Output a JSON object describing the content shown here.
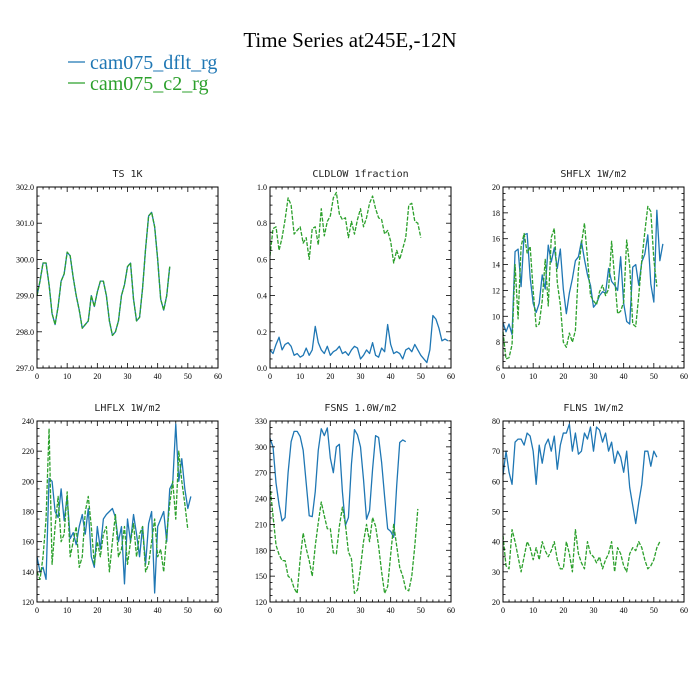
{
  "figure": {
    "title": "Time Series at245E,-12N",
    "legend": [
      {
        "label": "cam075_dflt_rg",
        "color": "#1f77b4"
      },
      {
        "label": "cam075_c2_rg",
        "color": "#2ca02c"
      }
    ]
  },
  "chart_data": [
    {
      "type": "line",
      "title": "TS   1K",
      "xlim": [
        0,
        60
      ],
      "ylim": [
        297.0,
        302.0
      ],
      "xticks": [
        0,
        10,
        20,
        30,
        40,
        50,
        60
      ],
      "yticks": [
        297.0,
        298.0,
        299.0,
        300.0,
        301.0,
        302.0
      ],
      "ytick_labels": [
        "297.0",
        "298.0",
        "299.0",
        "300.0",
        "301.0",
        "302.0"
      ],
      "series": [
        {
          "name": "cam075_dflt_rg",
          "color": "#1f77b4",
          "dashed": false,
          "values": [
            299.0,
            299.4,
            299.9,
            299.9,
            299.3,
            298.5,
            298.2,
            298.7,
            299.4,
            299.6,
            300.2,
            300.1,
            299.5,
            299.0,
            298.6,
            298.1,
            298.2,
            298.3,
            299.0,
            298.7,
            299.1,
            299.4,
            299.4,
            299.0,
            298.3,
            297.9,
            298.0,
            298.3,
            299.0,
            299.3,
            299.8,
            299.9,
            298.9,
            298.3,
            298.4,
            299.2,
            300.3,
            301.2,
            301.3,
            300.9,
            300.0,
            298.9,
            298.6,
            299.0,
            299.8
          ]
        },
        {
          "name": "cam075_c2_rg",
          "color": "#2ca02c",
          "dashed": true,
          "values": [
            299.0,
            299.4,
            299.9,
            299.9,
            299.3,
            298.5,
            298.2,
            298.7,
            299.4,
            299.6,
            300.2,
            300.1,
            299.5,
            299.0,
            298.6,
            298.1,
            298.2,
            298.3,
            299.0,
            298.7,
            299.1,
            299.4,
            299.4,
            299.0,
            298.3,
            297.9,
            298.0,
            298.3,
            299.0,
            299.3,
            299.8,
            299.9,
            298.9,
            298.3,
            298.4,
            299.2,
            300.3,
            301.2,
            301.3,
            300.9,
            300.0,
            298.9,
            298.6,
            299.0,
            299.8
          ]
        }
      ]
    },
    {
      "type": "line",
      "title": "CLDLOW   1fraction",
      "xlim": [
        0,
        60
      ],
      "ylim": [
        0.0,
        1.0
      ],
      "xticks": [
        0,
        10,
        20,
        30,
        40,
        50,
        60
      ],
      "yticks": [
        0.0,
        0.2,
        0.4,
        0.6,
        0.8,
        1.0
      ],
      "ytick_labels": [
        "0.0",
        "0.2",
        "0.4",
        "0.6",
        "0.8",
        "1.0"
      ],
      "series": [
        {
          "name": "cam075_dflt_rg",
          "color": "#1f77b4",
          "dashed": false,
          "values": [
            0.1,
            0.08,
            0.13,
            0.17,
            0.1,
            0.13,
            0.14,
            0.12,
            0.07,
            0.08,
            0.06,
            0.07,
            0.11,
            0.07,
            0.1,
            0.23,
            0.14,
            0.1,
            0.08,
            0.12,
            0.07,
            0.09,
            0.1,
            0.12,
            0.08,
            0.09,
            0.07,
            0.1,
            0.12,
            0.11,
            0.05,
            0.07,
            0.1,
            0.08,
            0.14,
            0.07,
            0.06,
            0.11,
            0.09,
            0.24,
            0.13,
            0.08,
            0.09,
            0.08,
            0.05,
            0.1,
            0.11,
            0.09,
            0.13,
            0.1,
            0.07,
            0.05,
            0.03,
            0.1,
            0.29,
            0.27,
            0.22,
            0.15,
            0.16,
            0.15
          ]
        },
        {
          "name": "cam075_c2_rg",
          "color": "#2ca02c",
          "dashed": true,
          "values": [
            0.62,
            0.77,
            0.78,
            0.65,
            0.72,
            0.82,
            0.94,
            0.9,
            0.74,
            0.76,
            0.78,
            0.69,
            0.72,
            0.6,
            0.77,
            0.78,
            0.68,
            0.88,
            0.73,
            0.81,
            0.84,
            0.94,
            0.97,
            0.85,
            0.82,
            0.83,
            0.72,
            0.81,
            0.74,
            0.82,
            0.88,
            0.78,
            0.83,
            0.91,
            0.95,
            0.88,
            0.83,
            0.82,
            0.74,
            0.76,
            0.7,
            0.58,
            0.65,
            0.6,
            0.66,
            0.72,
            0.9,
            0.91,
            0.81,
            0.8,
            0.72
          ]
        }
      ]
    },
    {
      "type": "line",
      "title": "SHFLX   1W/m2",
      "xlim": [
        0,
        60
      ],
      "ylim": [
        6,
        20
      ],
      "xticks": [
        0,
        10,
        20,
        30,
        40,
        50,
        60
      ],
      "yticks": [
        6,
        8,
        10,
        12,
        14,
        16,
        18,
        20
      ],
      "ytick_labels": [
        "6",
        "8",
        "10",
        "12",
        "14",
        "16",
        "18",
        "20"
      ],
      "series": [
        {
          "name": "cam075_dflt_rg",
          "color": "#1f77b4",
          "dashed": false,
          "values": [
            9.5,
            8.8,
            9.4,
            8.6,
            15.0,
            15.2,
            12.3,
            16.3,
            16.4,
            13.0,
            11.0,
            10.3,
            11.0,
            13.2,
            12.1,
            15.5,
            14.2,
            15.3,
            13.7,
            15.2,
            12.1,
            10.2,
            11.8,
            12.9,
            14.3,
            14.6,
            15.8,
            14.4,
            13.2,
            12.4,
            10.7,
            11.0,
            11.6,
            11.9,
            11.8,
            13.7,
            12.7,
            12.4,
            12.0,
            14.6,
            11.0,
            9.6,
            9.4,
            13.8,
            14.0,
            12.4,
            14.2,
            14.8,
            16.3,
            12.5,
            11.1,
            18.2,
            14.3,
            15.6
          ]
        },
        {
          "name": "cam075_c2_rg",
          "color": "#2ca02c",
          "dashed": true,
          "values": [
            8.8,
            6.7,
            6.8,
            7.8,
            14.0,
            9.8,
            15.4,
            16.4,
            14.9,
            15.4,
            12.0,
            9.2,
            9.4,
            11.2,
            14.4,
            10.8,
            16.1,
            16.8,
            12.6,
            10.9,
            8.0,
            7.6,
            8.7,
            8.0,
            8.9,
            13.6,
            15.6,
            17.2,
            14.5,
            11.6,
            11.2,
            10.9,
            11.9,
            12.4,
            11.6,
            12.1,
            15.8,
            13.0,
            10.2,
            10.4,
            11.1,
            15.9,
            13.9,
            9.4,
            9.2,
            11.6,
            14.3,
            16.5,
            18.5,
            18.1,
            14.4,
            12.3
          ]
        }
      ]
    },
    {
      "type": "line",
      "title": "LHFLX   1W/m2",
      "xlim": [
        0,
        60
      ],
      "ylim": [
        120,
        240
      ],
      "xticks": [
        0,
        10,
        20,
        30,
        40,
        50,
        60
      ],
      "yticks": [
        120,
        140,
        160,
        180,
        200,
        220,
        240
      ],
      "ytick_labels": [
        "120",
        "140",
        "160",
        "180",
        "200",
        "220",
        "240"
      ],
      "series": [
        {
          "name": "cam075_dflt_rg",
          "color": "#1f77b4",
          "dashed": false,
          "values": [
            150,
            140,
            143,
            135,
            202,
            200,
            180,
            176,
            195,
            174,
            190,
            162,
            166,
            158,
            170,
            178,
            165,
            182,
            150,
            143,
            170,
            155,
            175,
            178,
            180,
            182,
            176,
            160,
            170,
            132,
            175,
            160,
            178,
            165,
            150,
            170,
            145,
            172,
            180,
            126,
            170,
            175,
            180,
            160,
            195,
            199,
            238,
            200,
            215,
            195,
            182,
            190
          ]
        },
        {
          "name": "cam075_c2_rg",
          "color": "#2ca02c",
          "dashed": true,
          "values": [
            140,
            135,
            150,
            175,
            235,
            145,
            170,
            190,
            160,
            165,
            193,
            150,
            160,
            170,
            143,
            150,
            180,
            190,
            170,
            145,
            160,
            150,
            165,
            170,
            140,
            160,
            178,
            150,
            155,
            170,
            145,
            160,
            172,
            150,
            165,
            170,
            140,
            145,
            160,
            175,
            150,
            155,
            140,
            165,
            185,
            200,
            175,
            220,
            200,
            185,
            168
          ]
        }
      ]
    },
    {
      "type": "line",
      "title": "FSNS   1.0W/m2",
      "xlim": [
        0,
        60
      ],
      "ylim": [
        120,
        330
      ],
      "xticks": [
        0,
        10,
        20,
        30,
        40,
        50,
        60
      ],
      "yticks": [
        120,
        150,
        180,
        210,
        240,
        270,
        300,
        330
      ],
      "ytick_labels": [
        "120",
        "150",
        "180",
        "210",
        "240",
        "270",
        "300",
        "330"
      ],
      "series": [
        {
          "name": "cam075_dflt_rg",
          "color": "#1f77b4",
          "dashed": false,
          "values": [
            310,
            300,
            258,
            233,
            214,
            218,
            270,
            306,
            318,
            318,
            312,
            296,
            258,
            220,
            219,
            248,
            296,
            321,
            313,
            322,
            287,
            270,
            300,
            303,
            248,
            209,
            218,
            280,
            320,
            314,
            300,
            262,
            216,
            226,
            274,
            313,
            311,
            282,
            242,
            205,
            202,
            195,
            255,
            305,
            308,
            306
          ]
        },
        {
          "name": "cam075_c2_rg",
          "color": "#2ca02c",
          "dashed": true,
          "values": [
            255,
            220,
            186,
            175,
            168,
            168,
            150,
            147,
            136,
            130,
            170,
            200,
            182,
            168,
            150,
            185,
            212,
            236,
            220,
            205,
            205,
            177,
            176,
            208,
            230,
            210,
            178,
            170,
            130,
            134,
            160,
            190,
            210,
            190,
            218,
            208,
            185,
            155,
            130,
            138,
            175,
            210,
            185,
            160,
            150,
            135,
            133,
            150,
            185,
            228
          ]
        }
      ]
    },
    {
      "type": "line",
      "title": "FLNS   1W/m2",
      "xlim": [
        0,
        60
      ],
      "ylim": [
        20,
        80
      ],
      "xticks": [
        0,
        10,
        20,
        30,
        40,
        50,
        60
      ],
      "yticks": [
        20,
        30,
        40,
        50,
        60,
        70,
        80
      ],
      "ytick_labels": [
        "20",
        "30",
        "40",
        "50",
        "60",
        "70",
        "80"
      ],
      "series": [
        {
          "name": "cam075_dflt_rg",
          "color": "#1f77b4",
          "dashed": false,
          "values": [
            62,
            70,
            63,
            59,
            73,
            74,
            74,
            72,
            76,
            75,
            70,
            59,
            72,
            66,
            72,
            74,
            70,
            75,
            64,
            72,
            76,
            76,
            79,
            70,
            76,
            69,
            70,
            76,
            74,
            78,
            70,
            78,
            77,
            73,
            76,
            70,
            73,
            66,
            70,
            68,
            63,
            70,
            58,
            52,
            46,
            53,
            59,
            70,
            70,
            65,
            70,
            68
          ]
        },
        {
          "name": "cam075_c2_rg",
          "color": "#2ca02c",
          "dashed": true,
          "values": [
            42,
            32,
            31,
            44,
            40,
            35,
            30,
            35,
            40,
            38,
            34,
            38,
            34,
            40,
            37,
            35,
            37,
            40,
            34,
            31,
            31,
            40,
            36,
            30,
            44,
            36,
            33,
            31,
            40,
            36,
            35,
            33,
            35,
            31,
            34,
            36,
            40,
            30,
            38,
            36,
            32,
            30,
            36,
            38,
            37,
            40,
            38,
            34,
            31,
            32,
            34,
            38,
            40
          ]
        }
      ]
    }
  ]
}
